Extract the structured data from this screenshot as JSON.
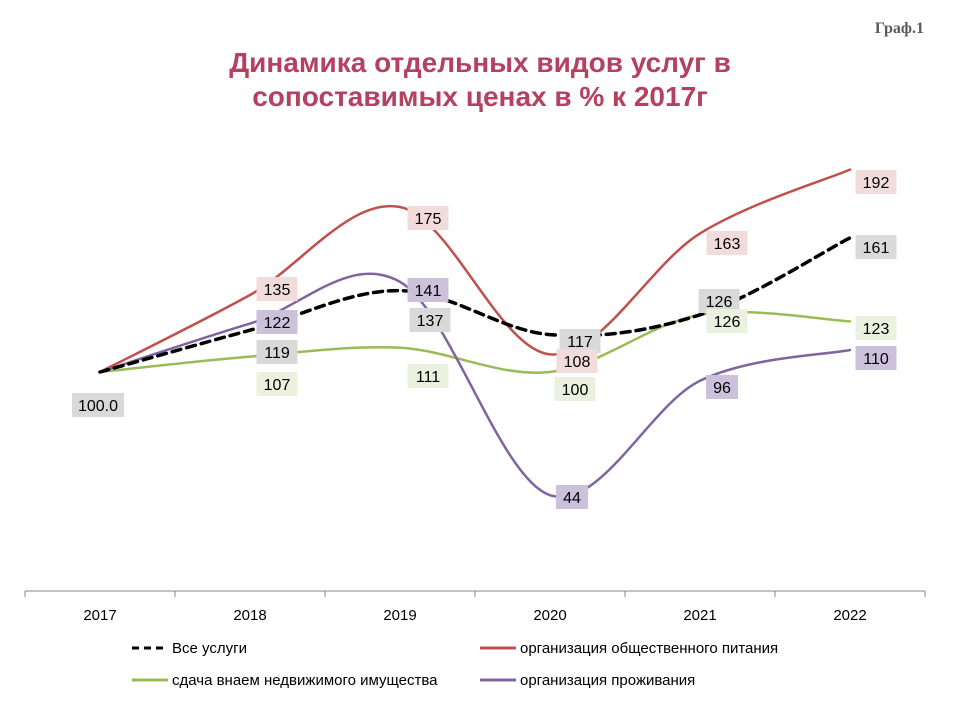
{
  "slide_label": "Граф.1",
  "chart_data": {
    "type": "line",
    "title_lines": [
      "Динамика отдельных видов услуг в",
      "сопоставимых ценах в % к 2017г"
    ],
    "categories": [
      "2017",
      "2018",
      "2019",
      "2020",
      "2021",
      "2022"
    ],
    "ylim": [
      0,
      200
    ],
    "smooth": true,
    "grid": false,
    "legend_position": "bottom",
    "start_label": "100.0",
    "series": [
      {
        "name": "Все услуги",
        "values": [
          100,
          119,
          137,
          117,
          126,
          161
        ],
        "color": "#000000",
        "dashed": true,
        "label_bg": "#d9d9d9"
      },
      {
        "name": "организация общественного питания",
        "values": [
          100,
          135,
          175,
          108,
          163,
          192
        ],
        "color": "#c0504d",
        "dashed": false,
        "label_bg": "#f2dcdb"
      },
      {
        "name": "сдача внаем недвижимого имущества",
        "values": [
          100,
          107,
          111,
          100,
          126,
          123
        ],
        "color": "#9bbb59",
        "dashed": false,
        "label_bg": "#ebf1de"
      },
      {
        "name": "организация проживания",
        "values": [
          100,
          122,
          141,
          44,
          96,
          110
        ],
        "color": "#8064a2",
        "dashed": false,
        "label_bg": "#ccc1da"
      }
    ]
  }
}
